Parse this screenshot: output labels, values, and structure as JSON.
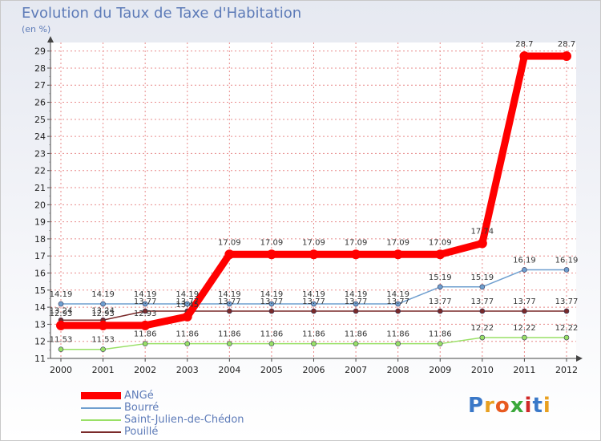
{
  "chart_data": {
    "type": "line",
    "title": "Evolution du Taux de Taxe d'Habitation",
    "ylabel": "(en %)",
    "x": [
      "2000",
      "2001",
      "2002",
      "2003",
      "2004",
      "2005",
      "2006",
      "2007",
      "2008",
      "2009",
      "2010",
      "2011",
      "2012"
    ],
    "ylim": [
      11,
      29.5
    ],
    "yticks": [
      11,
      12,
      13,
      14,
      15,
      16,
      17,
      18,
      19,
      20,
      21,
      22,
      23,
      24,
      25,
      26,
      27,
      28,
      29
    ],
    "grid": true,
    "legend_position": "bottom-left",
    "series": [
      {
        "name": "ANGé",
        "color": "#ff0000",
        "values": [
          12.93,
          12.93,
          12.93,
          13.45,
          17.09,
          17.09,
          17.09,
          17.09,
          17.09,
          17.09,
          17.74,
          28.7,
          28.7
        ],
        "labels": [
          "12.93",
          "12.93",
          "12.93",
          "13.45",
          "17.09",
          "17.09",
          "17.09",
          "17.09",
          "17.09",
          "17.09",
          "17.74",
          "28.7",
          "28.7"
        ]
      },
      {
        "name": "Bourré",
        "color": "#6f9fcf",
        "values": [
          14.19,
          14.19,
          14.19,
          14.19,
          14.19,
          14.19,
          14.19,
          14.19,
          14.19,
          15.19,
          15.19,
          16.19,
          16.19
        ],
        "labels": [
          "14.19",
          "14.19",
          "14.19",
          "14.19",
          "14.19",
          "14.19",
          "14.19",
          "14.19",
          "14.19",
          "15.19",
          "15.19",
          "16.19",
          "16.19"
        ]
      },
      {
        "name": "Saint-Julien-de-Chédon",
        "color": "#99e066",
        "values": [
          11.53,
          11.53,
          11.86,
          11.86,
          11.86,
          11.86,
          11.86,
          11.86,
          11.86,
          11.86,
          12.22,
          12.22,
          12.22
        ],
        "labels": [
          "11.53",
          "11.53",
          "11.86",
          "11.86",
          "11.86",
          "11.86",
          "11.86",
          "11.86",
          "11.86",
          "11.86",
          "12.22",
          "12.22",
          "12.22"
        ]
      },
      {
        "name": "Pouillé",
        "color": "#7a2a2a",
        "values": [
          13.24,
          13.24,
          13.77,
          13.77,
          13.77,
          13.77,
          13.77,
          13.77,
          13.77,
          13.77,
          13.77,
          13.77,
          13.77
        ],
        "labels": [
          "13.24",
          "13.24",
          "13.77",
          "13.77",
          "13.77",
          "13.77",
          "13.77",
          "13.77",
          "13.77",
          "13.77",
          "13.77",
          "13.77",
          "13.77"
        ]
      }
    ]
  },
  "logo": {
    "text": "Proxiti",
    "letters": [
      "P",
      "r",
      "o",
      "x",
      "i",
      "t",
      "i"
    ],
    "colors": [
      "#3a78c8",
      "#e8a020",
      "#e85a20",
      "#3aa83a",
      "#d02828",
      "#3a78c8",
      "#e8a020"
    ]
  }
}
